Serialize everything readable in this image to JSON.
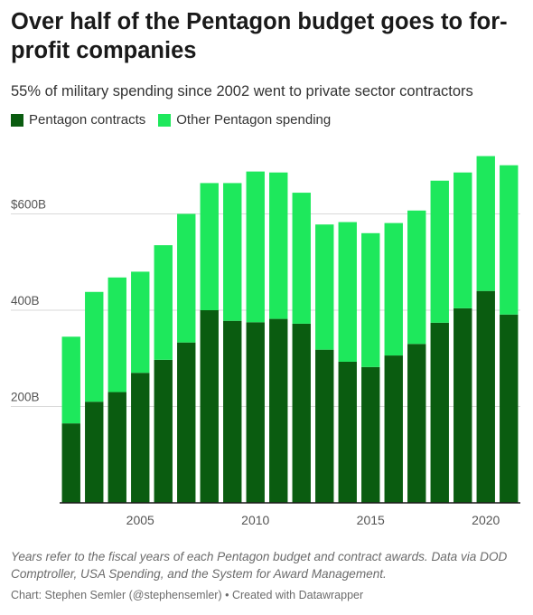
{
  "header": {
    "title": "Over half of the Pentagon budget goes to for-profit companies",
    "subtitle": "55% of military spending since 2002 went to private sector contractors"
  },
  "legend": [
    {
      "label": "Pentagon contracts",
      "color": "#0a5c10"
    },
    {
      "label": "Other Pentagon spending",
      "color": "#1ee85c"
    }
  ],
  "footer": {
    "notes": "Years refer to the fiscal years of each Pentagon budget and contract awards. Data via DOD Comptroller, USA Spending, and the System for Award Management.",
    "credit": "Chart: Stephen Semler (@stephensemler) • Created with Datawrapper"
  },
  "chart_data": {
    "type": "bar",
    "stacked": true,
    "categories": [
      "2002",
      "2003",
      "2004",
      "2005",
      "2006",
      "2007",
      "2008",
      "2009",
      "2010",
      "2011",
      "2012",
      "2013",
      "2014",
      "2015",
      "2016",
      "2017",
      "2018",
      "2019",
      "2020",
      "2021"
    ],
    "series": [
      {
        "name": "Pentagon contracts",
        "color": "#0a5c10",
        "values": [
          165,
          210,
          230,
          270,
          297,
          333,
          400,
          378,
          375,
          382,
          372,
          318,
          293,
          282,
          306,
          330,
          374,
          404,
          440,
          391
        ]
      },
      {
        "name": "Other Pentagon spending",
        "color": "#1ee85c",
        "values": [
          180,
          228,
          238,
          210,
          238,
          267,
          264,
          286,
          313,
          304,
          272,
          260,
          290,
          278,
          275,
          277,
          295,
          282,
          280,
          310
        ]
      }
    ],
    "ylim": [
      0,
      720
    ],
    "yticks": [
      200,
      400,
      600
    ],
    "ytick_labels": [
      "200B",
      "400B",
      "$600B"
    ],
    "xticks": [
      "2005",
      "2010",
      "2015",
      "2020"
    ],
    "grid": true,
    "legend_position": "top-left"
  }
}
